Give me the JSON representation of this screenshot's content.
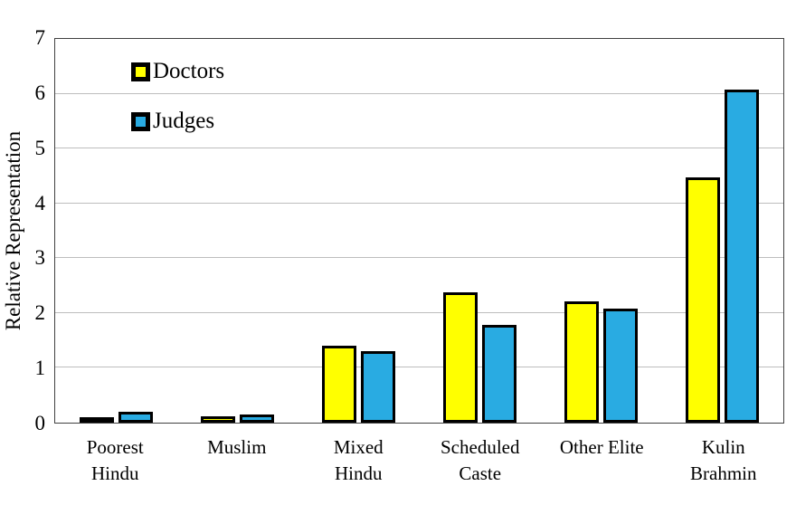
{
  "chart_data": {
    "type": "bar",
    "categories": [
      "Poorest\nHindu",
      "Muslim",
      "Mixed\nHindu",
      "Scheduled\nCaste",
      "Other Elite",
      "Kulin\nBrahmin"
    ],
    "series": [
      {
        "name": "Doctors",
        "color": "#FFFF00",
        "values": [
          0.08,
          0.12,
          1.4,
          2.38,
          2.22,
          4.47
        ]
      },
      {
        "name": "Judges",
        "color": "#29ABE2",
        "values": [
          0.2,
          0.15,
          1.3,
          1.78,
          2.08,
          6.07
        ]
      }
    ],
    "title": "",
    "xlabel": "",
    "ylabel": "Relative Representation",
    "ylim": [
      0,
      7
    ],
    "yticks": [
      0,
      1,
      2,
      3,
      4,
      5,
      6,
      7
    ],
    "grid": true,
    "legend_position": "top-left-inside",
    "bar_border_color": "#000000",
    "gridline_color": "#BDBDBD"
  }
}
